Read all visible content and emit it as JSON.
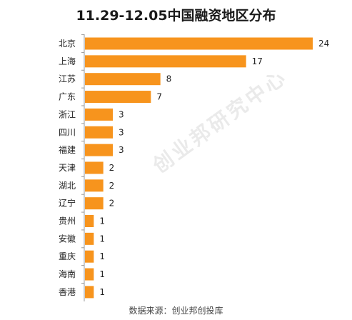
{
  "chart_data": {
    "type": "bar",
    "orientation": "horizontal",
    "title": "11.29-12.05中国融资地区分布",
    "xlabel": "",
    "ylabel": "",
    "categories": [
      "北京",
      "上海",
      "江苏",
      "广东",
      "浙江",
      "四川",
      "福建",
      "天津",
      "湖北",
      "辽宁",
      "贵州",
      "安徽",
      "重庆",
      "海南",
      "香港"
    ],
    "values": [
      24,
      17,
      8,
      7,
      3,
      3,
      3,
      2,
      2,
      2,
      1,
      1,
      1,
      1,
      1
    ],
    "xlim": [
      0,
      24
    ],
    "grid": false,
    "data_labels": true,
    "bar_color": "#F7941D"
  },
  "source_note": "数据来源：创业邦创投库",
  "watermark_text": "创业邦研究中心"
}
